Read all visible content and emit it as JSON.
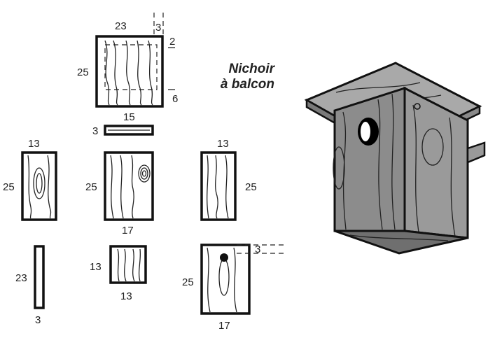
{
  "title": {
    "line1": "Nichoir",
    "line2": "à balcon"
  },
  "pieces": {
    "roof": {
      "width": "23",
      "height": "25",
      "dim_a": "3",
      "dim_b": "2",
      "dim_c": "6"
    },
    "perch": {
      "length": "15",
      "thickness": "3"
    },
    "side_left": {
      "width": "13",
      "height": "25"
    },
    "back": {
      "height": "25",
      "width": "17"
    },
    "side_right": {
      "width": "13",
      "height": "25"
    },
    "strip": {
      "height": "23",
      "width": "3"
    },
    "floor": {
      "height": "13",
      "width": "13"
    },
    "front": {
      "height": "25",
      "width": "17",
      "offset": "3"
    }
  }
}
